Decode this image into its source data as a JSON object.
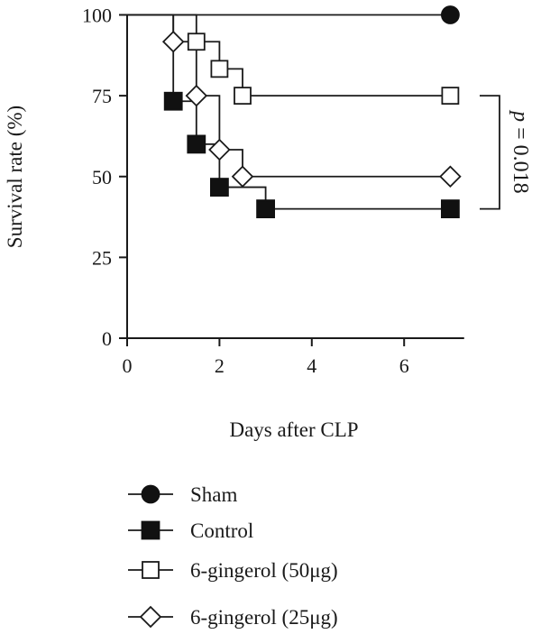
{
  "chart_data": {
    "type": "line",
    "subtype": "kaplan-meier-step",
    "xlabel": "Days after CLP",
    "ylabel": "Survival rate (%)",
    "xlim": [
      0,
      7.3
    ],
    "ylim": [
      0,
      100
    ],
    "xticks": [
      0,
      2,
      4,
      6
    ],
    "yticks": [
      0,
      25,
      50,
      75,
      100
    ],
    "legend_position": "bottom-left",
    "series": [
      {
        "name": "Sham",
        "marker": "circle-filled",
        "steps": [
          [
            0,
            100
          ],
          [
            7,
            100
          ]
        ],
        "marker_points": [
          [
            7,
            100
          ]
        ]
      },
      {
        "name": "Control",
        "marker": "square-filled",
        "steps": [
          [
            0,
            100
          ],
          [
            1,
            100
          ],
          [
            1,
            73.3
          ],
          [
            1.5,
            73.3
          ],
          [
            1.5,
            60
          ],
          [
            2,
            60
          ],
          [
            2,
            46.7
          ],
          [
            3,
            46.7
          ],
          [
            3,
            40
          ],
          [
            7,
            40
          ]
        ],
        "marker_points": [
          [
            1,
            73.3
          ],
          [
            1.5,
            60
          ],
          [
            2,
            46.7
          ],
          [
            3,
            40
          ],
          [
            7,
            40
          ]
        ]
      },
      {
        "name": "6-gingerol (50μg)",
        "marker": "square-open",
        "steps": [
          [
            0,
            100
          ],
          [
            1.5,
            100
          ],
          [
            1.5,
            91.7
          ],
          [
            2,
            91.7
          ],
          [
            2,
            83.3
          ],
          [
            2.5,
            83.3
          ],
          [
            2.5,
            75
          ],
          [
            7,
            75
          ]
        ],
        "marker_points": [
          [
            1.5,
            91.7
          ],
          [
            2,
            83.3
          ],
          [
            2.5,
            75
          ],
          [
            7,
            75
          ]
        ]
      },
      {
        "name": "6-gingerol (25μg)",
        "marker": "diamond-open",
        "steps": [
          [
            0,
            100
          ],
          [
            1,
            100
          ],
          [
            1,
            91.7
          ],
          [
            1.5,
            91.7
          ],
          [
            1.5,
            75
          ],
          [
            2,
            75
          ],
          [
            2,
            58.3
          ],
          [
            2.5,
            58.3
          ],
          [
            2.5,
            50
          ],
          [
            7,
            50
          ]
        ],
        "marker_points": [
          [
            1,
            91.7
          ],
          [
            1.5,
            75
          ],
          [
            2,
            58.3
          ],
          [
            2.5,
            50
          ],
          [
            7,
            50
          ]
        ]
      }
    ],
    "annotation": {
      "label": "p = 0.018",
      "from_y": 75,
      "to_y": 40
    }
  }
}
